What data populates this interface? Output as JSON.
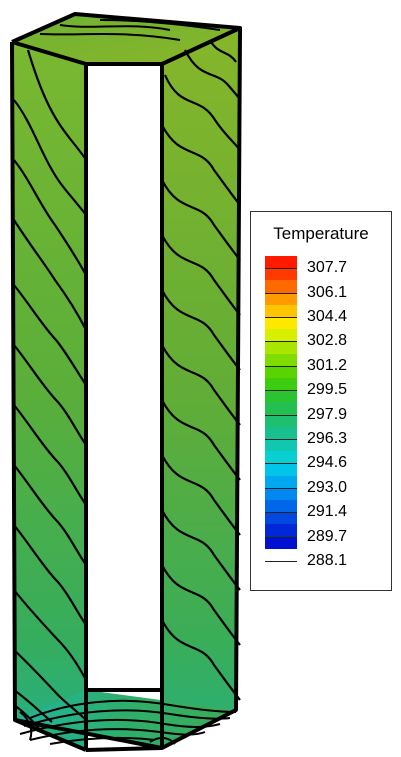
{
  "legend": {
    "title": "Temperature",
    "levels": [
      "307.7",
      "306.1",
      "304.4",
      "302.8",
      "301.2",
      "299.5",
      "297.9",
      "296.3",
      "294.6",
      "293.0",
      "291.4",
      "289.7",
      "288.1"
    ],
    "colors": [
      "#ff1a00",
      "#ff3a00",
      "#ff6a00",
      "#ff9a00",
      "#ffc400",
      "#ffe800",
      "#d8f000",
      "#a8e600",
      "#80dc00",
      "#5ad400",
      "#3ccc10",
      "#2ac430",
      "#22c050",
      "#1ec070",
      "#18c090",
      "#10c8b0",
      "#08d0d0",
      "#00c4e8",
      "#00a8f0",
      "#0088f0",
      "#0068e8",
      "#0048e0",
      "#0028d8",
      "#0010d0"
    ]
  },
  "surface_colors": {
    "back_top": "#7fb52e",
    "left_wall": "#5fae38",
    "right_wall": "#63ad35",
    "bottom_region": "#2fae6a",
    "outline": "#000000"
  }
}
